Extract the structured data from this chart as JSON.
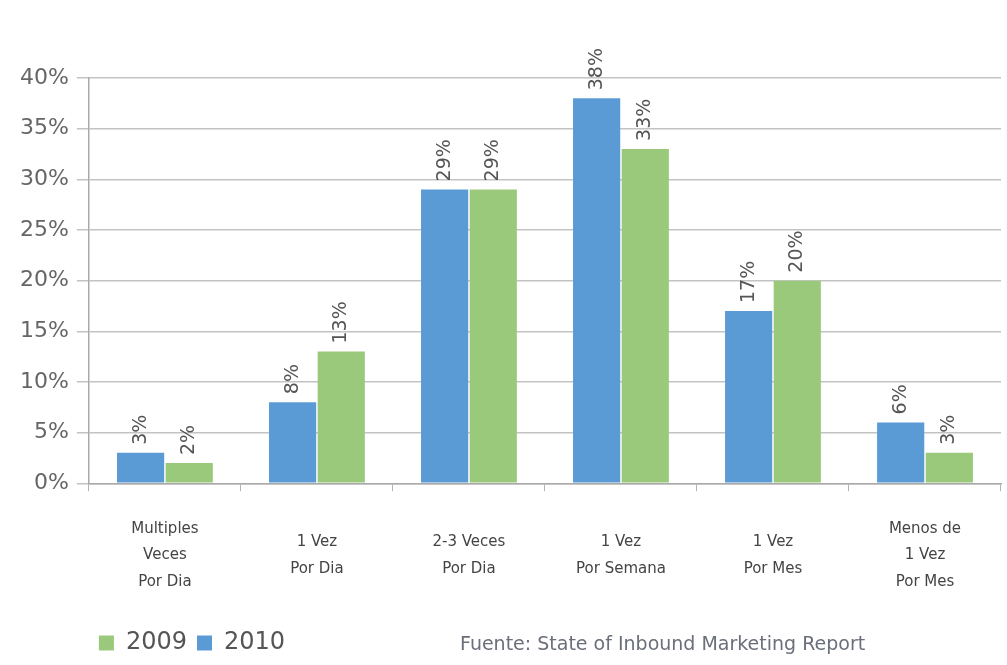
{
  "chart_data": {
    "type": "bar",
    "categories": [
      "Multiples\nVeces\nPor Dia",
      "1 Vez\nPor Dia",
      "2-3 Veces\nPor Dia",
      "1 Vez\nPor Semana",
      "1 Vez\nPor Mes",
      "Menos de\n1 Vez\nPor Mes"
    ],
    "series": [
      {
        "name": "2010",
        "color": "#5b9bd5",
        "values": [
          3,
          8,
          29,
          38,
          17,
          6
        ],
        "value_labels": [
          "3%",
          "8%",
          "29%",
          "38%",
          "17%",
          "6%"
        ]
      },
      {
        "name": "2009",
        "color": "#9bc97b",
        "values": [
          2,
          13,
          29,
          33,
          20,
          3
        ],
        "value_labels": [
          "2%",
          "13%",
          "29%",
          "33%",
          "20%",
          "3%"
        ]
      }
    ],
    "ylim": [
      0,
      40
    ],
    "yticks": [
      {
        "value": 0,
        "label": "0%"
      },
      {
        "value": 5,
        "label": "5%"
      },
      {
        "value": 10,
        "label": "10%"
      },
      {
        "value": 15,
        "label": "15%"
      },
      {
        "value": 20,
        "label": "20%"
      },
      {
        "value": 25,
        "label": "25%"
      },
      {
        "value": 30,
        "label": "30%"
      },
      {
        "value": 35,
        "label": "35%"
      },
      {
        "value": 40,
        "label": "40%"
      }
    ],
    "grid": "y",
    "legend": "bottom left",
    "annotations": [
      "Fuente: State of Inbound Marketing Report"
    ]
  }
}
